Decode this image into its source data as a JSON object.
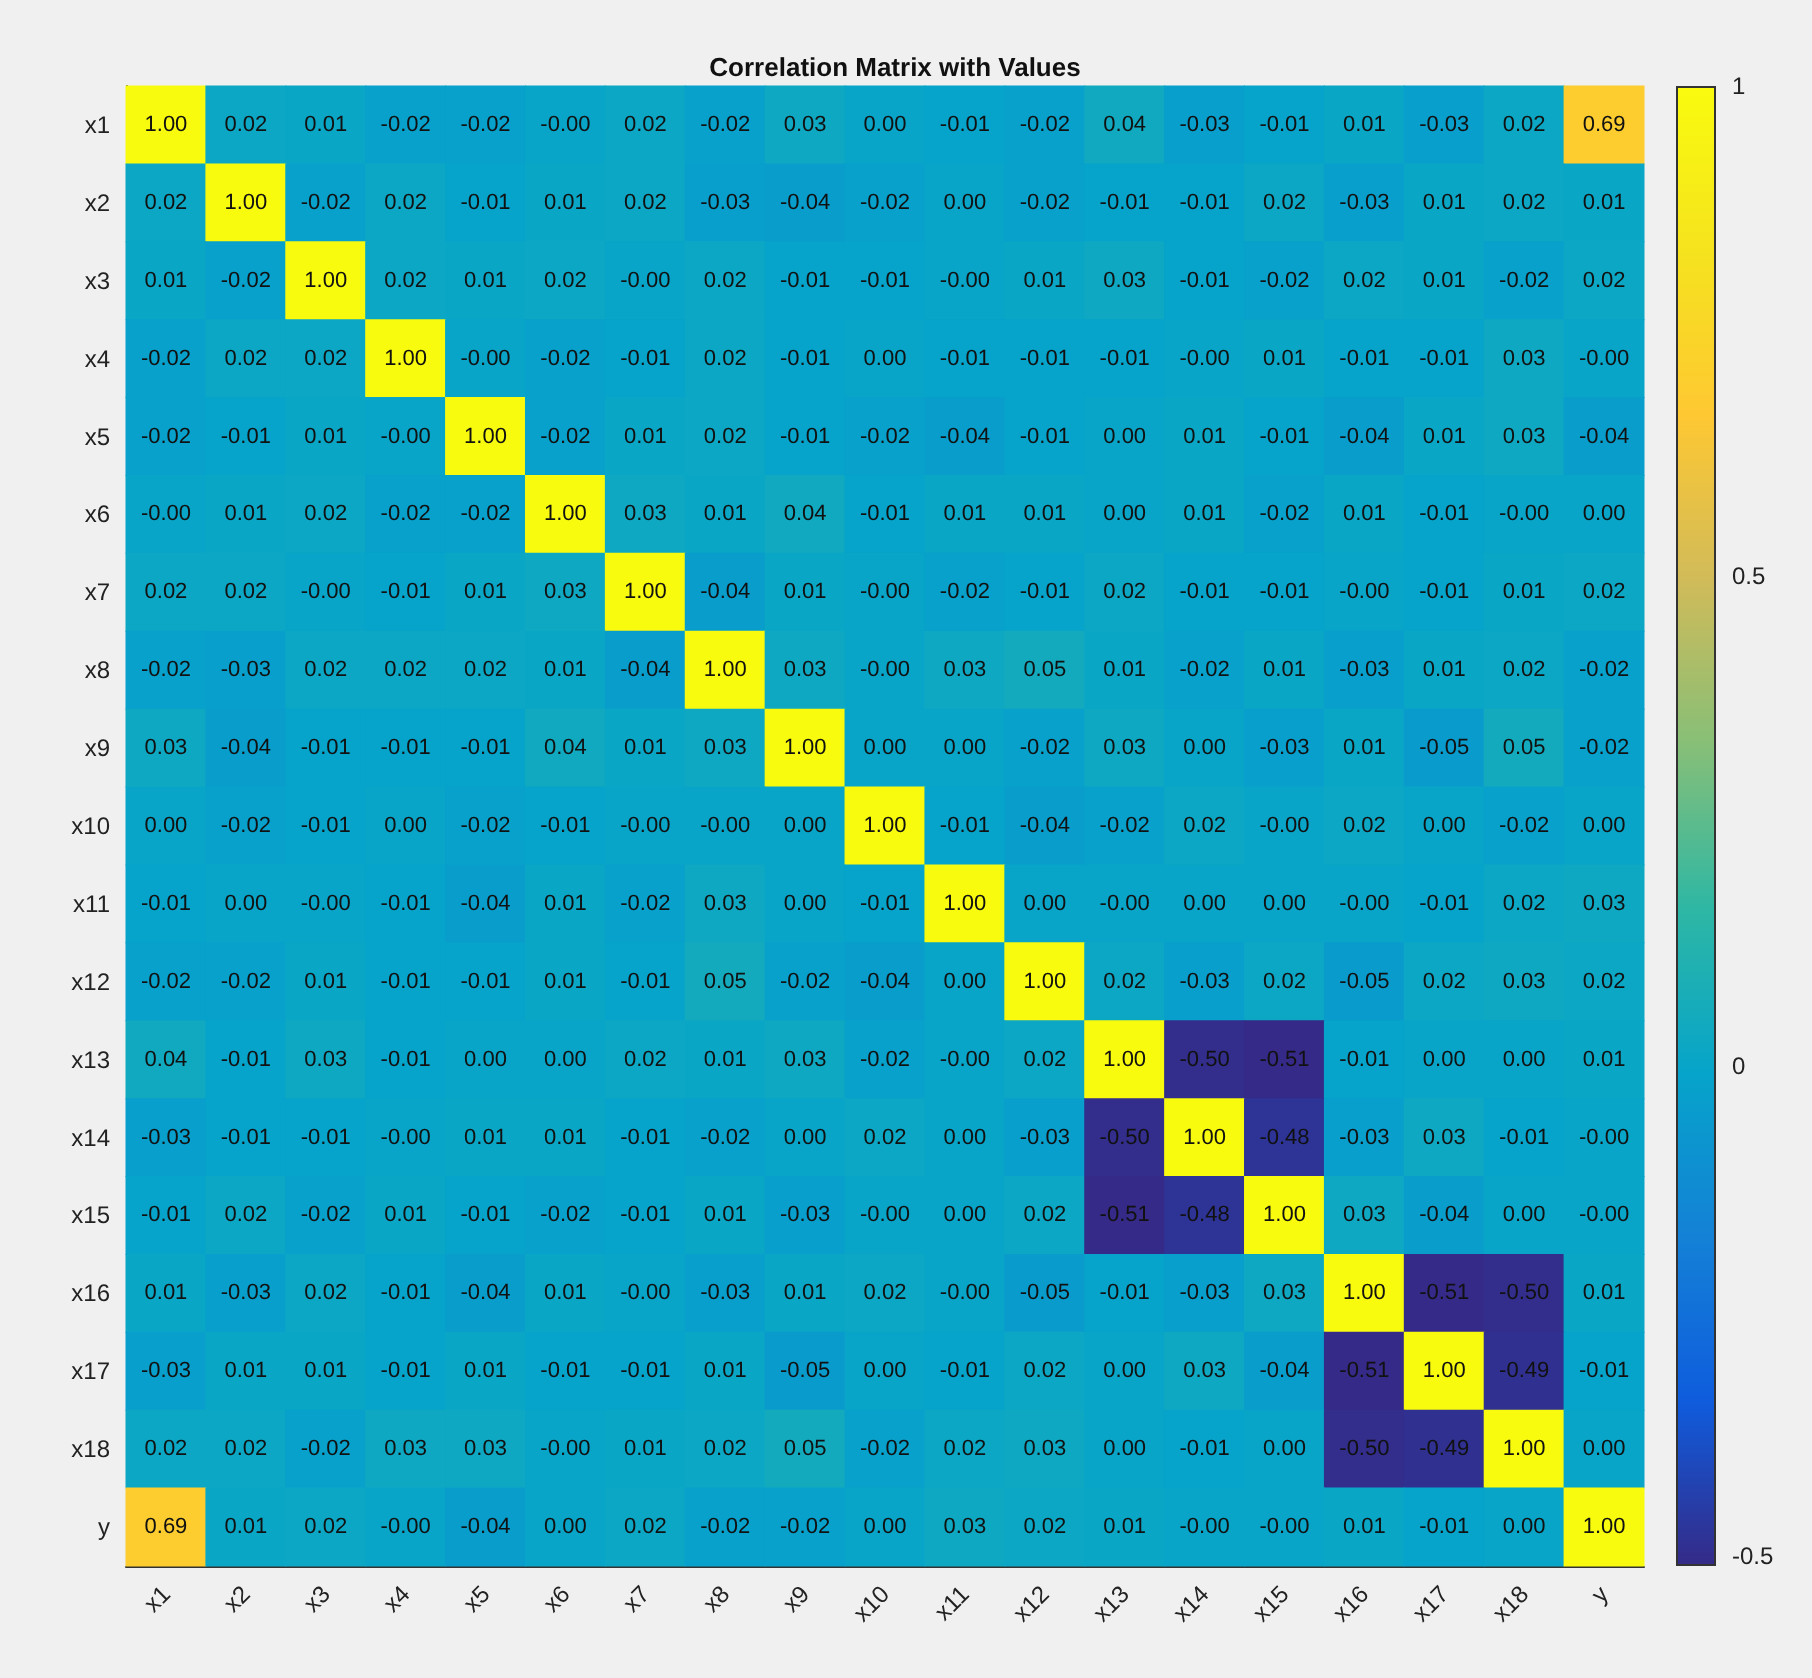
{
  "chart_data": {
    "type": "heatmap",
    "title": "Correlation Matrix with Values",
    "categories": [
      "x1",
      "x2",
      "x3",
      "x4",
      "x5",
      "x6",
      "x7",
      "x8",
      "x9",
      "x10",
      "x11",
      "x12",
      "x13",
      "x14",
      "x15",
      "x16",
      "x17",
      "x18",
      "y"
    ],
    "y_categories": [
      "x1",
      "x2",
      "x3",
      "x4",
      "x5",
      "x6",
      "x7",
      "x8",
      "x9",
      "x10",
      "x11",
      "x12",
      "x13",
      "x14",
      "x15",
      "x16",
      "x17",
      "x18",
      "y"
    ],
    "cells": [
      [
        1.0,
        0.02,
        0.01,
        -0.02,
        -0.02,
        0.0,
        0.02,
        -0.02,
        0.03,
        0.0,
        -0.01,
        -0.02,
        0.04,
        -0.03,
        -0.01,
        0.01,
        -0.03,
        0.02,
        0.69
      ],
      [
        0.02,
        1.0,
        -0.02,
        0.02,
        -0.01,
        0.01,
        0.02,
        -0.03,
        -0.04,
        -0.02,
        0.0,
        -0.02,
        -0.01,
        -0.01,
        0.02,
        -0.03,
        0.01,
        0.02,
        0.01
      ],
      [
        0.01,
        -0.02,
        1.0,
        0.02,
        0.01,
        0.02,
        0.0,
        0.02,
        -0.01,
        -0.01,
        0.0,
        0.01,
        0.03,
        -0.01,
        -0.02,
        0.02,
        0.01,
        -0.02,
        0.02
      ],
      [
        -0.02,
        0.02,
        0.02,
        1.0,
        0.0,
        -0.02,
        -0.01,
        0.02,
        -0.01,
        0.0,
        -0.01,
        -0.01,
        -0.01,
        0.0,
        0.01,
        -0.01,
        -0.01,
        0.03,
        0.0
      ],
      [
        -0.02,
        -0.01,
        0.01,
        0.0,
        1.0,
        -0.02,
        0.01,
        0.02,
        -0.01,
        -0.02,
        -0.04,
        -0.01,
        0.0,
        0.01,
        -0.01,
        -0.04,
        0.01,
        0.03,
        -0.04
      ],
      [
        0.0,
        0.01,
        0.02,
        -0.02,
        -0.02,
        1.0,
        0.03,
        0.01,
        0.04,
        -0.01,
        0.01,
        0.01,
        0.0,
        0.01,
        -0.02,
        0.01,
        -0.01,
        0.0,
        0.0
      ],
      [
        0.02,
        0.02,
        0.0,
        -0.01,
        0.01,
        0.03,
        1.0,
        -0.04,
        0.01,
        0.0,
        -0.02,
        -0.01,
        0.02,
        -0.01,
        -0.01,
        0.0,
        -0.01,
        0.01,
        0.02
      ],
      [
        -0.02,
        -0.03,
        0.02,
        0.02,
        0.02,
        0.01,
        -0.04,
        1.0,
        0.03,
        0.0,
        0.03,
        0.05,
        0.01,
        -0.02,
        0.01,
        -0.03,
        0.01,
        0.02,
        -0.02
      ],
      [
        0.03,
        -0.04,
        -0.01,
        -0.01,
        -0.01,
        0.04,
        0.01,
        0.03,
        1.0,
        0.0,
        0.0,
        -0.02,
        0.03,
        0.0,
        -0.03,
        0.01,
        -0.05,
        0.05,
        -0.02
      ],
      [
        0.0,
        -0.02,
        -0.01,
        0.0,
        -0.02,
        -0.01,
        0.0,
        0.0,
        0.0,
        1.0,
        -0.01,
        -0.04,
        -0.02,
        0.02,
        0.0,
        0.02,
        0.0,
        -0.02,
        0.0
      ],
      [
        -0.01,
        0.0,
        0.0,
        -0.01,
        -0.04,
        0.01,
        -0.02,
        0.03,
        0.0,
        -0.01,
        1.0,
        0.0,
        0.0,
        0.0,
        0.0,
        0.0,
        -0.01,
        0.02,
        0.03
      ],
      [
        -0.02,
        -0.02,
        0.01,
        -0.01,
        -0.01,
        0.01,
        -0.01,
        0.05,
        -0.02,
        -0.04,
        0.0,
        1.0,
        0.02,
        -0.03,
        0.02,
        -0.05,
        0.02,
        0.03,
        0.02
      ],
      [
        0.04,
        -0.01,
        0.03,
        -0.01,
        0.0,
        0.0,
        0.02,
        0.01,
        0.03,
        -0.02,
        0.0,
        0.02,
        1.0,
        -0.5,
        -0.51,
        -0.01,
        0.0,
        0.0,
        0.01
      ],
      [
        -0.03,
        -0.01,
        -0.01,
        0.0,
        0.01,
        0.01,
        -0.01,
        -0.02,
        0.0,
        0.02,
        0.0,
        -0.03,
        -0.5,
        1.0,
        -0.48,
        -0.03,
        0.03,
        -0.01,
        0.0
      ],
      [
        -0.01,
        0.02,
        -0.02,
        0.01,
        -0.01,
        -0.02,
        -0.01,
        0.01,
        -0.03,
        0.0,
        0.0,
        0.02,
        -0.51,
        -0.48,
        1.0,
        0.03,
        -0.04,
        0.0,
        0.0
      ],
      [
        0.01,
        -0.03,
        0.02,
        -0.01,
        -0.04,
        0.01,
        0.0,
        -0.03,
        0.01,
        0.02,
        0.0,
        -0.05,
        -0.01,
        -0.03,
        0.03,
        1.0,
        -0.51,
        -0.5,
        0.01
      ],
      [
        -0.03,
        0.01,
        0.01,
        -0.01,
        0.01,
        -0.01,
        -0.01,
        0.01,
        -0.05,
        0.0,
        -0.01,
        0.02,
        0.0,
        0.03,
        -0.04,
        -0.51,
        1.0,
        -0.49,
        -0.01
      ],
      [
        0.02,
        0.02,
        -0.02,
        0.03,
        0.03,
        0.0,
        0.01,
        0.02,
        0.05,
        -0.02,
        0.02,
        0.03,
        0.0,
        -0.01,
        0.0,
        -0.5,
        -0.49,
        1.0,
        0.0
      ],
      [
        0.69,
        0.01,
        0.02,
        0.0,
        -0.04,
        0.0,
        0.02,
        -0.02,
        -0.02,
        0.0,
        0.03,
        0.02,
        0.01,
        0.0,
        0.0,
        0.01,
        -0.01,
        0.0,
        1.0
      ]
    ],
    "cell_labels": [
      [
        "1.00",
        "0.02",
        "0.01",
        "-0.02",
        "-0.02",
        "-0.00",
        "0.02",
        "-0.02",
        "0.03",
        "0.00",
        "-0.01",
        "-0.02",
        "0.04",
        "-0.03",
        "-0.01",
        "0.01",
        "-0.03",
        "0.02",
        "0.69"
      ],
      [
        "0.02",
        "1.00",
        "-0.02",
        "0.02",
        "-0.01",
        "0.01",
        "0.02",
        "-0.03",
        "-0.04",
        "-0.02",
        "0.00",
        "-0.02",
        "-0.01",
        "-0.01",
        "0.02",
        "-0.03",
        "0.01",
        "0.02",
        "0.01"
      ],
      [
        "0.01",
        "-0.02",
        "1.00",
        "0.02",
        "0.01",
        "0.02",
        "-0.00",
        "0.02",
        "-0.01",
        "-0.01",
        "-0.00",
        "0.01",
        "0.03",
        "-0.01",
        "-0.02",
        "0.02",
        "0.01",
        "-0.02",
        "0.02"
      ],
      [
        "-0.02",
        "0.02",
        "0.02",
        "1.00",
        "-0.00",
        "-0.02",
        "-0.01",
        "0.02",
        "-0.01",
        "0.00",
        "-0.01",
        "-0.01",
        "-0.01",
        "-0.00",
        "0.01",
        "-0.01",
        "-0.01",
        "0.03",
        "-0.00"
      ],
      [
        "-0.02",
        "-0.01",
        "0.01",
        "-0.00",
        "1.00",
        "-0.02",
        "0.01",
        "0.02",
        "-0.01",
        "-0.02",
        "-0.04",
        "-0.01",
        "0.00",
        "0.01",
        "-0.01",
        "-0.04",
        "0.01",
        "0.03",
        "-0.04"
      ],
      [
        "-0.00",
        "0.01",
        "0.02",
        "-0.02",
        "-0.02",
        "1.00",
        "0.03",
        "0.01",
        "0.04",
        "-0.01",
        "0.01",
        "0.01",
        "0.00",
        "0.01",
        "-0.02",
        "0.01",
        "-0.01",
        "-0.00",
        "0.00"
      ],
      [
        "0.02",
        "0.02",
        "-0.00",
        "-0.01",
        "0.01",
        "0.03",
        "1.00",
        "-0.04",
        "0.01",
        "-0.00",
        "-0.02",
        "-0.01",
        "0.02",
        "-0.01",
        "-0.01",
        "-0.00",
        "-0.01",
        "0.01",
        "0.02"
      ],
      [
        "-0.02",
        "-0.03",
        "0.02",
        "0.02",
        "0.02",
        "0.01",
        "-0.04",
        "1.00",
        "0.03",
        "-0.00",
        "0.03",
        "0.05",
        "0.01",
        "-0.02",
        "0.01",
        "-0.03",
        "0.01",
        "0.02",
        "-0.02"
      ],
      [
        "0.03",
        "-0.04",
        "-0.01",
        "-0.01",
        "-0.01",
        "0.04",
        "0.01",
        "0.03",
        "1.00",
        "0.00",
        "0.00",
        "-0.02",
        "0.03",
        "0.00",
        "-0.03",
        "0.01",
        "-0.05",
        "0.05",
        "-0.02"
      ],
      [
        "0.00",
        "-0.02",
        "-0.01",
        "0.00",
        "-0.02",
        "-0.01",
        "-0.00",
        "-0.00",
        "0.00",
        "1.00",
        "-0.01",
        "-0.04",
        "-0.02",
        "0.02",
        "-0.00",
        "0.02",
        "0.00",
        "-0.02",
        "0.00"
      ],
      [
        "-0.01",
        "0.00",
        "-0.00",
        "-0.01",
        "-0.04",
        "0.01",
        "-0.02",
        "0.03",
        "0.00",
        "-0.01",
        "1.00",
        "0.00",
        "-0.00",
        "0.00",
        "0.00",
        "-0.00",
        "-0.01",
        "0.02",
        "0.03"
      ],
      [
        "-0.02",
        "-0.02",
        "0.01",
        "-0.01",
        "-0.01",
        "0.01",
        "-0.01",
        "0.05",
        "-0.02",
        "-0.04",
        "0.00",
        "1.00",
        "0.02",
        "-0.03",
        "0.02",
        "-0.05",
        "0.02",
        "0.03",
        "0.02"
      ],
      [
        "0.04",
        "-0.01",
        "0.03",
        "-0.01",
        "0.00",
        "0.00",
        "0.02",
        "0.01",
        "0.03",
        "-0.02",
        "-0.00",
        "0.02",
        "1.00",
        "-0.50",
        "-0.51",
        "-0.01",
        "0.00",
        "0.00",
        "0.01"
      ],
      [
        "-0.03",
        "-0.01",
        "-0.01",
        "-0.00",
        "0.01",
        "0.01",
        "-0.01",
        "-0.02",
        "0.00",
        "0.02",
        "0.00",
        "-0.03",
        "-0.50",
        "1.00",
        "-0.48",
        "-0.03",
        "0.03",
        "-0.01",
        "-0.00"
      ],
      [
        "-0.01",
        "0.02",
        "-0.02",
        "0.01",
        "-0.01",
        "-0.02",
        "-0.01",
        "0.01",
        "-0.03",
        "-0.00",
        "0.00",
        "0.02",
        "-0.51",
        "-0.48",
        "1.00",
        "0.03",
        "-0.04",
        "0.00",
        "-0.00"
      ],
      [
        "0.01",
        "-0.03",
        "0.02",
        "-0.01",
        "-0.04",
        "0.01",
        "-0.00",
        "-0.03",
        "0.01",
        "0.02",
        "-0.00",
        "-0.05",
        "-0.01",
        "-0.03",
        "0.03",
        "1.00",
        "-0.51",
        "-0.50",
        "0.01"
      ],
      [
        "-0.03",
        "0.01",
        "0.01",
        "-0.01",
        "0.01",
        "-0.01",
        "-0.01",
        "0.01",
        "-0.05",
        "0.00",
        "-0.01",
        "0.02",
        "0.00",
        "0.03",
        "-0.04",
        "-0.51",
        "1.00",
        "-0.49",
        "-0.01"
      ],
      [
        "0.02",
        "0.02",
        "-0.02",
        "0.03",
        "0.03",
        "-0.00",
        "0.01",
        "0.02",
        "0.05",
        "-0.02",
        "0.02",
        "0.03",
        "0.00",
        "-0.01",
        "0.00",
        "-0.50",
        "-0.49",
        "1.00",
        "0.00"
      ],
      [
        "0.69",
        "0.01",
        "0.02",
        "-0.00",
        "-0.04",
        "0.00",
        "0.02",
        "-0.02",
        "-0.02",
        "0.00",
        "0.03",
        "0.02",
        "0.01",
        "-0.00",
        "-0.00",
        "0.01",
        "-0.01",
        "0.00",
        "1.00"
      ]
    ],
    "clim": [
      -0.51,
      1
    ],
    "cticks": [
      -0.5,
      0,
      0.5,
      1
    ]
  }
}
